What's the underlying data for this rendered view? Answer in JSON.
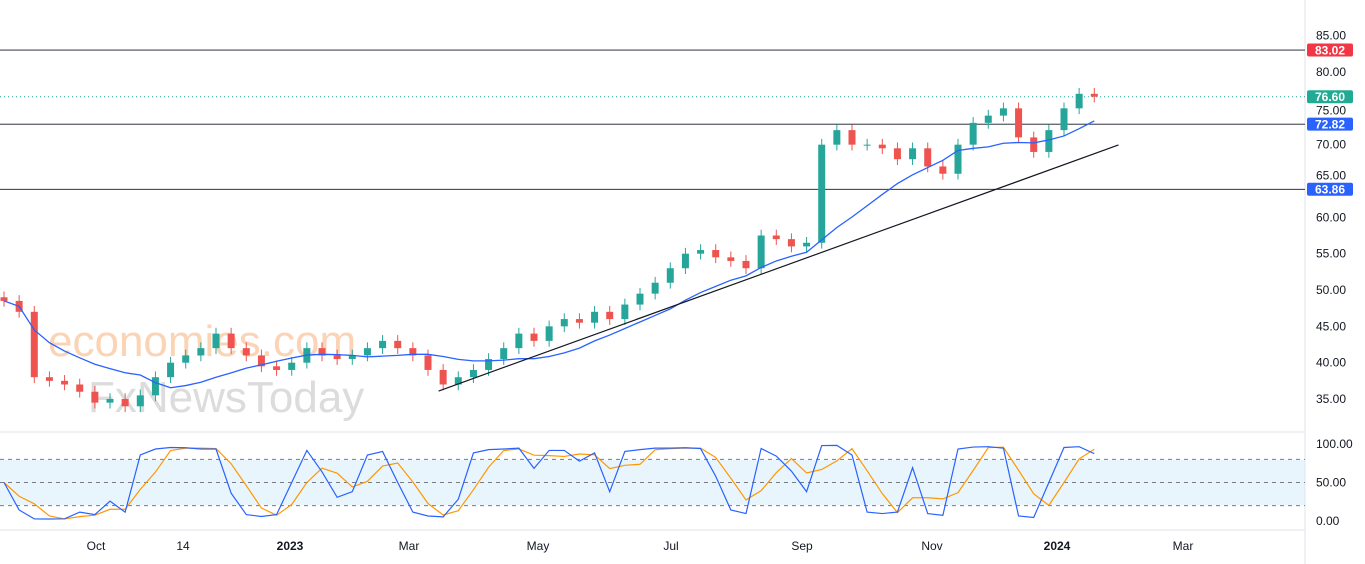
{
  "chart_data": {
    "type": "candlestick",
    "title": "",
    "interval_note": "approximate weekly closes",
    "weekly_close": [
      48.5,
      47,
      38,
      37.5,
      37,
      36,
      34.5,
      35,
      34,
      35.5,
      38,
      40,
      41,
      42,
      44,
      42,
      41,
      39.5,
      39,
      40,
      42,
      41,
      40.5,
      41,
      42,
      43,
      42,
      41,
      39,
      37,
      38,
      39,
      40.5,
      42,
      44,
      43,
      45,
      46,
      45.5,
      47,
      46,
      48,
      49.5,
      51,
      53,
      55,
      55.5,
      54.5,
      54,
      53,
      57.5,
      57,
      56,
      56.5,
      70,
      72,
      70,
      70,
      69.5,
      68,
      69.5,
      67,
      66,
      70,
      73,
      74,
      75,
      71,
      69,
      72,
      75,
      77,
      76.6
    ],
    "moving_average_period": 10,
    "stochastic_period": 3,
    "ylim": [
      33,
      86
    ],
    "y_ticks": [
      "85.00",
      "80.00",
      "75.00",
      "70.00",
      "65.00",
      "60.00",
      "55.00",
      "50.00",
      "45.00",
      "40.00",
      "35.00"
    ],
    "x_ticks": [
      "Oct",
      "14",
      "2023",
      "Mar",
      "May",
      "Jul",
      "Sep",
      "Nov",
      "2024",
      "Mar"
    ],
    "horizontal_levels": [
      {
        "label": "83.02",
        "value": 83.02,
        "color": "#f23645"
      },
      {
        "label": "72.82",
        "value": 72.82,
        "color": "#2962ff"
      },
      {
        "label": "63.86",
        "value": 63.86,
        "color": "#2962ff"
      }
    ],
    "last_price": {
      "label": "76.60",
      "value": 76.6,
      "color": "#22ab94"
    },
    "trendline": {
      "from": {
        "week": 28.7,
        "price": 36.1
      },
      "to": {
        "week": 73.6,
        "price": 69.96
      }
    },
    "oscillator": {
      "y_ticks": [
        "100.00",
        "50.00",
        "0.00"
      ],
      "upper_band": 80,
      "lower_band": 20
    },
    "colors": {
      "up": "#26a69a",
      "down": "#ef5350",
      "ma": "#2962ff",
      "k": "#2962ff",
      "d": "#ff9800"
    }
  },
  "watermark": {
    "line1": "economies.com",
    "line2": "FxNewsToday"
  }
}
